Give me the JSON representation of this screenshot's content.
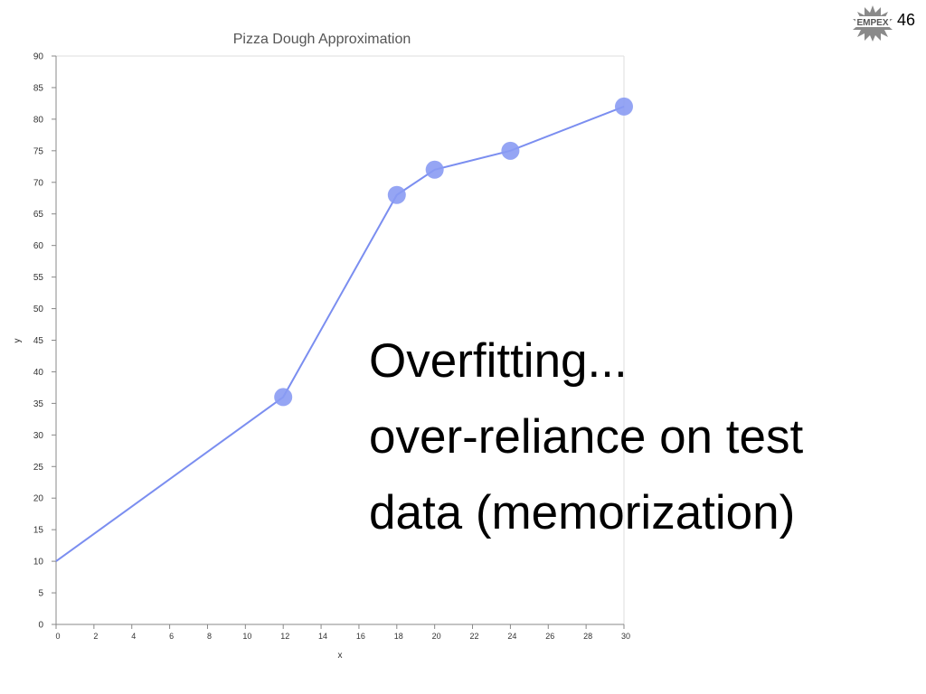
{
  "slide": {
    "number": "46",
    "logo_text": "EMPEX"
  },
  "overlay": {
    "lines": [
      "Overfitting...",
      "over-reliance on test",
      "data (memorization)"
    ]
  },
  "colors": {
    "series": "#7b8ef0",
    "marker": "#8a9bf3",
    "axis": "#888888",
    "grid_edge": "#dddddd",
    "title": "#555555"
  },
  "chart_data": {
    "type": "line",
    "title": "Pizza Dough Approximation",
    "xlabel": "x",
    "ylabel": "y",
    "xlim": [
      0,
      30
    ],
    "ylim": [
      0,
      90
    ],
    "xticks": [
      0,
      2,
      4,
      6,
      8,
      10,
      12,
      14,
      16,
      18,
      20,
      22,
      24,
      26,
      28,
      30
    ],
    "yticks": [
      0,
      5,
      10,
      15,
      20,
      25,
      30,
      35,
      40,
      45,
      50,
      55,
      60,
      65,
      70,
      75,
      80,
      85,
      90
    ],
    "grid": false,
    "line": {
      "x": [
        0,
        12,
        18,
        20,
        24,
        30
      ],
      "y": [
        10,
        36,
        68,
        72,
        75,
        82
      ]
    },
    "points": {
      "x": [
        12,
        18,
        20,
        24,
        30
      ],
      "y": [
        36,
        68,
        72,
        75,
        82
      ]
    }
  }
}
